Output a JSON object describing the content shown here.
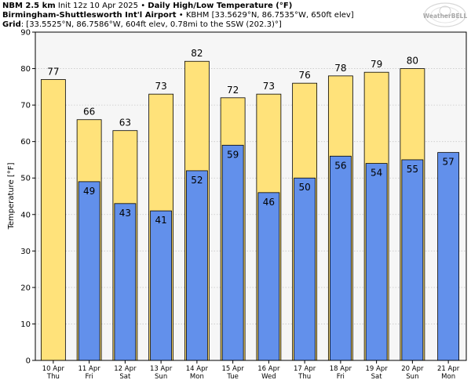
{
  "header": {
    "line1_model": "NBM 2.5 km",
    "line1_init": " Init 12z 10 Apr 2025",
    "line1_sep": " • ",
    "line1_product": "Daily High/Low Temperature (°F)",
    "line2_station": "Birmingham-Shuttlesworth Int'l Airport",
    "line2_sep": " • ",
    "line2_detail": "KBHM [33.5629°N, 86.7535°W, 650ft elev]",
    "line3_label": "Grid",
    "line3_sep": ": ",
    "line3_detail": "[33.5525°N, 86.7586°W, 604ft elev, 0.78mi to the SSW (202.3)°]"
  },
  "logo": {
    "text": "WeatherBELL"
  },
  "colors": {
    "high": "#ffe27a",
    "low": "#6290eb",
    "plot_bg": "#f6f6f6",
    "grid": "#c8c8c8"
  },
  "chart_data": {
    "type": "bar",
    "title": "Daily High/Low Temperature (°F)",
    "ylabel": "Temperature [°F]",
    "xlabel": "",
    "ylim": [
      0,
      90
    ],
    "yticks": [
      0,
      10,
      20,
      30,
      40,
      50,
      60,
      70,
      80,
      90
    ],
    "grid": true,
    "categories": [
      {
        "date": "10 Apr",
        "day": "Thu"
      },
      {
        "date": "11 Apr",
        "day": "Fri"
      },
      {
        "date": "12 Apr",
        "day": "Sat"
      },
      {
        "date": "13 Apr",
        "day": "Sun"
      },
      {
        "date": "14 Apr",
        "day": "Mon"
      },
      {
        "date": "15 Apr",
        "day": "Tue"
      },
      {
        "date": "16 Apr",
        "day": "Wed"
      },
      {
        "date": "17 Apr",
        "day": "Thu"
      },
      {
        "date": "18 Apr",
        "day": "Fri"
      },
      {
        "date": "19 Apr",
        "day": "Sat"
      },
      {
        "date": "20 Apr",
        "day": "Sun"
      },
      {
        "date": "21 Apr",
        "day": "Mon"
      }
    ],
    "series": [
      {
        "key": "high",
        "values": [
          77,
          66,
          63,
          73,
          82,
          72,
          73,
          76,
          78,
          79,
          80,
          null
        ]
      },
      {
        "key": "low",
        "values": [
          null,
          49,
          43,
          41,
          52,
          59,
          46,
          50,
          56,
          54,
          55,
          57
        ]
      }
    ]
  }
}
